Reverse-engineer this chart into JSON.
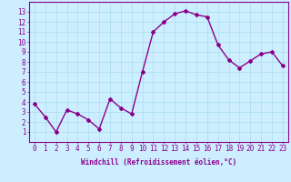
{
  "x": [
    0,
    1,
    2,
    3,
    4,
    5,
    6,
    7,
    8,
    9,
    10,
    11,
    12,
    13,
    14,
    15,
    16,
    17,
    18,
    19,
    20,
    21,
    22,
    23
  ],
  "y": [
    3.8,
    2.5,
    1.0,
    3.2,
    2.8,
    2.2,
    1.3,
    4.3,
    3.4,
    2.8,
    7.0,
    11.0,
    12.0,
    12.8,
    13.1,
    12.7,
    12.5,
    9.7,
    8.2,
    7.4,
    8.1,
    8.8,
    9.0,
    7.6
  ],
  "line_color": "#8B008B",
  "marker": "D",
  "marker_size": 2.0,
  "line_width": 1.0,
  "bg_color": "#cceeff",
  "grid_color": "#aaddee",
  "xlabel": "Windchill (Refroidissement éolien,°C)",
  "xlabel_color": "#8B008B",
  "tick_color": "#8B008B",
  "ylim": [
    0,
    14
  ],
  "xlim": [
    -0.5,
    23.5
  ],
  "yticks": [
    1,
    2,
    3,
    4,
    5,
    6,
    7,
    8,
    9,
    10,
    11,
    12,
    13
  ],
  "xticks": [
    0,
    1,
    2,
    3,
    4,
    5,
    6,
    7,
    8,
    9,
    10,
    11,
    12,
    13,
    14,
    15,
    16,
    17,
    18,
    19,
    20,
    21,
    22,
    23
  ],
  "xlabel_fontsize": 5.5,
  "tick_fontsize": 5.5
}
